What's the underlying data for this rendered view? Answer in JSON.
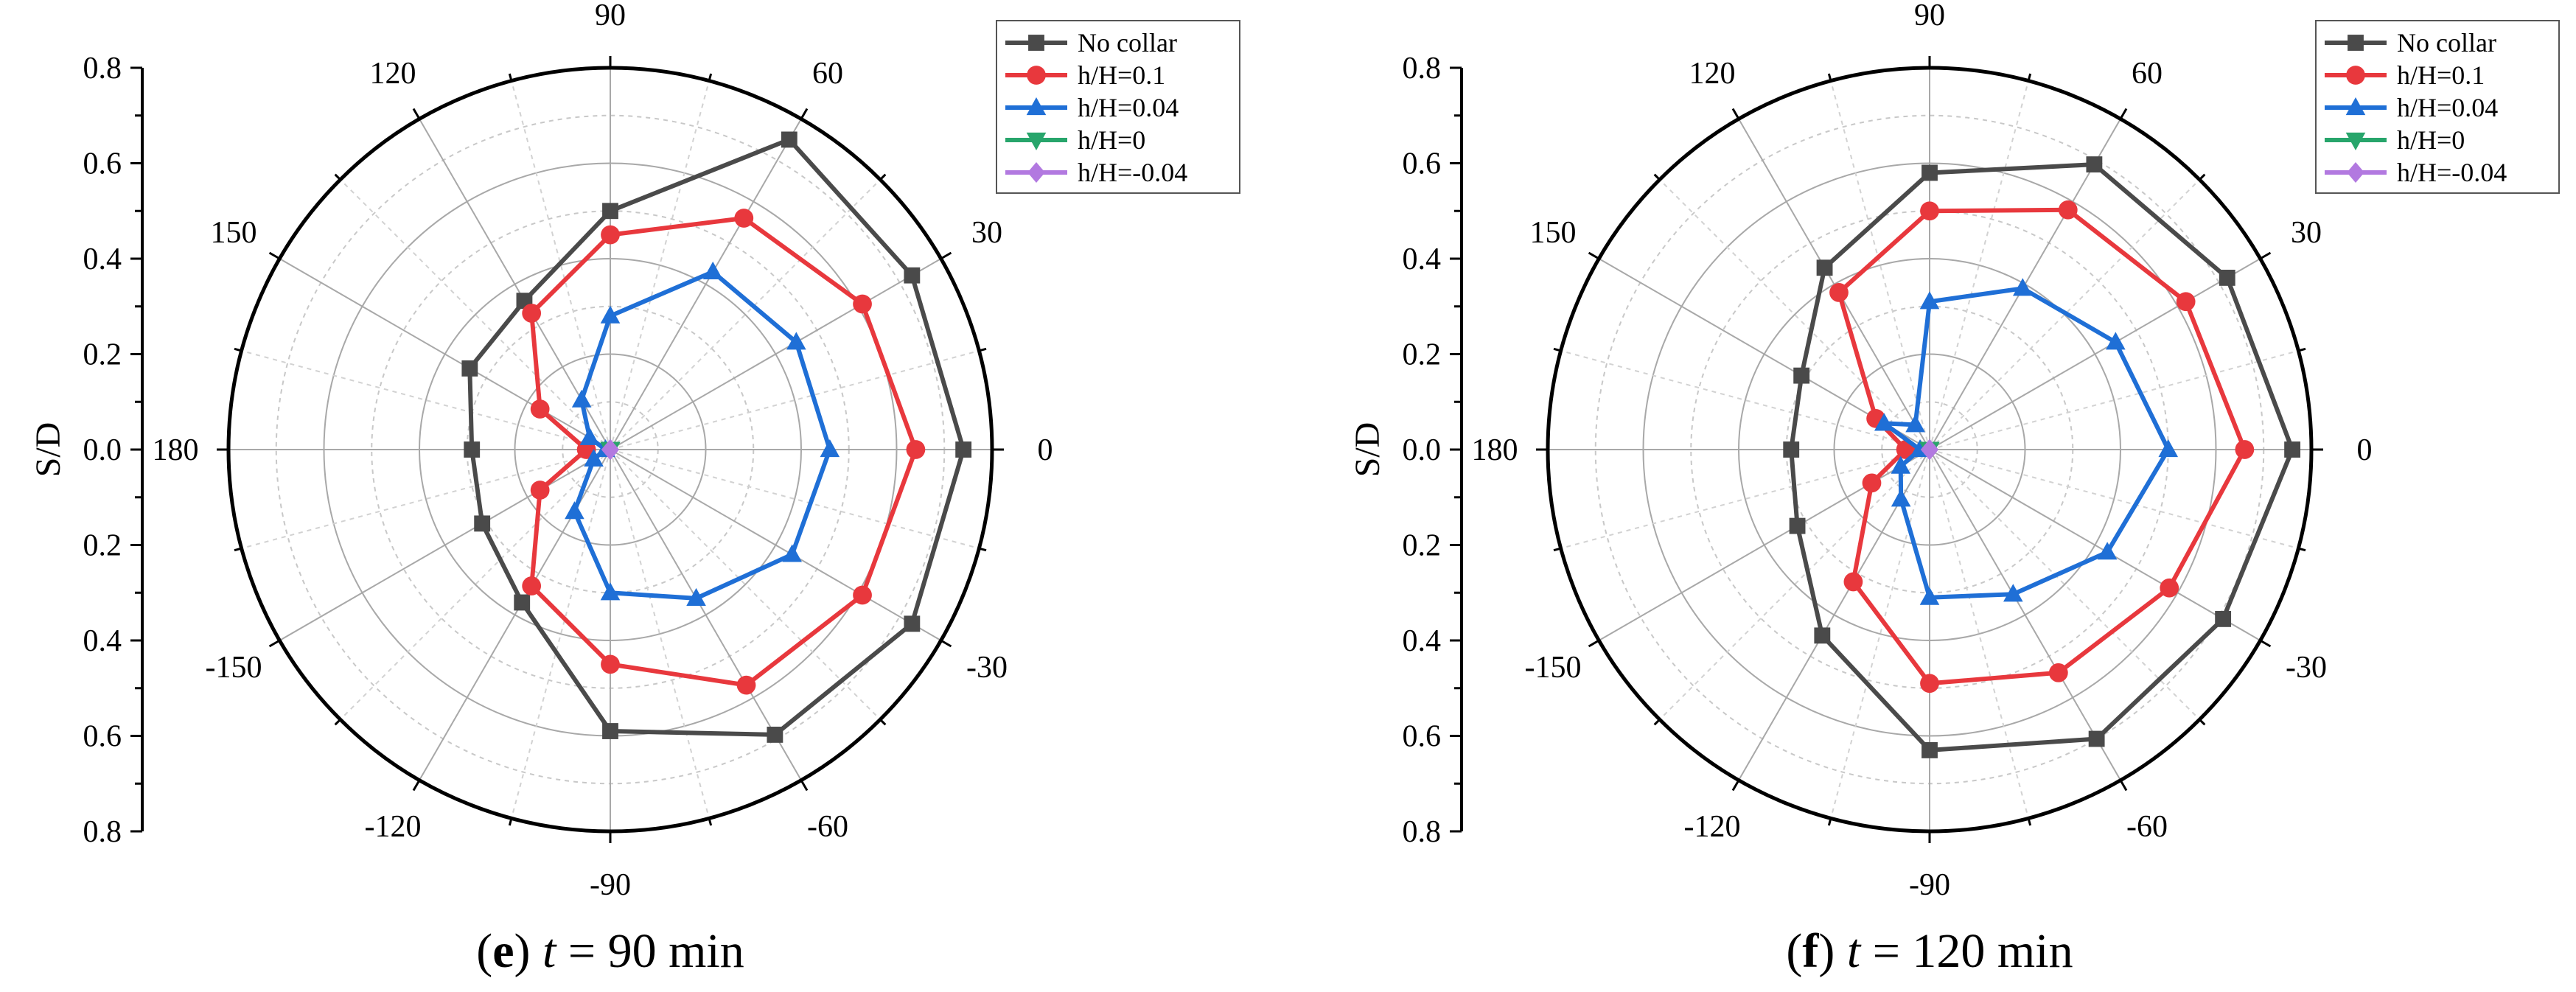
{
  "chart_data": [
    {
      "type": "radar",
      "panel_label": "e",
      "caption_var": "t",
      "caption_rest": " = 90 min",
      "ylabel": "S/D",
      "r_range": [
        0,
        0.8
      ],
      "ring_step": 0.2,
      "minor_ring_step": 0.1,
      "y_ticks": [
        "0.8",
        "0.6",
        "0.4",
        "0.2",
        "0.0",
        "0.2",
        "0.4",
        "0.6",
        "0.8"
      ],
      "angle_labels": [
        "0",
        "30",
        "60",
        "90",
        "120",
        "150",
        "180",
        "-150",
        "-120",
        "-90",
        "-60",
        "-30"
      ],
      "angles_deg": [
        0,
        30,
        60,
        90,
        120,
        150,
        180,
        -150,
        -120,
        -90,
        -60,
        -30
      ],
      "legend_position": "top-right",
      "series": [
        {
          "name": "No collar",
          "color": "#4a4a4a",
          "marker": "square",
          "values": [
            0.74,
            0.73,
            0.75,
            0.5,
            0.36,
            0.34,
            0.29,
            0.31,
            0.37,
            0.59,
            0.69,
            0.73
          ]
        },
        {
          "name": "h/H=0.1",
          "color": "#e8383d",
          "marker": "circle",
          "values": [
            0.64,
            0.61,
            0.56,
            0.45,
            0.33,
            0.17,
            0.05,
            0.17,
            0.33,
            0.45,
            0.57,
            0.61
          ]
        },
        {
          "name": "h/H=0.04",
          "color": "#1f6fd6",
          "marker": "triangle-up",
          "values": [
            0.46,
            0.45,
            0.43,
            0.28,
            0.12,
            0.05,
            0.01,
            0.04,
            0.15,
            0.3,
            0.36,
            0.44
          ]
        },
        {
          "name": "h/H=0",
          "color": "#27a56b",
          "marker": "triangle-down",
          "values": [
            0,
            0,
            0,
            0,
            0,
            0,
            0,
            0,
            0,
            0,
            0,
            0
          ]
        },
        {
          "name": "h/H=-0.04",
          "color": "#b279e0",
          "marker": "diamond",
          "values": [
            0,
            0,
            0,
            0,
            0,
            0,
            0,
            0,
            0,
            0,
            0,
            0
          ]
        }
      ]
    },
    {
      "type": "radar",
      "panel_label": "f",
      "caption_var": "t",
      "caption_rest": " = 120 min",
      "ylabel": "S/D",
      "r_range": [
        0,
        0.8
      ],
      "ring_step": 0.2,
      "minor_ring_step": 0.1,
      "y_ticks": [
        "0.8",
        "0.6",
        "0.4",
        "0.2",
        "0.0",
        "0.2",
        "0.4",
        "0.6",
        "0.8"
      ],
      "angle_labels": [
        "0",
        "30",
        "60",
        "90",
        "120",
        "150",
        "180",
        "-150",
        "-120",
        "-90",
        "-60",
        "-30"
      ],
      "angles_deg": [
        0,
        30,
        60,
        90,
        120,
        150,
        180,
        -150,
        -120,
        -90,
        -60,
        -30
      ],
      "legend_position": "top-right",
      "series": [
        {
          "name": "No collar",
          "color": "#4a4a4a",
          "marker": "square",
          "values": [
            0.76,
            0.72,
            0.69,
            0.58,
            0.44,
            0.31,
            0.29,
            0.32,
            0.45,
            0.63,
            0.7,
            0.71
          ]
        },
        {
          "name": "h/H=0.1",
          "color": "#e8383d",
          "marker": "circle",
          "values": [
            0.66,
            0.62,
            0.58,
            0.5,
            0.38,
            0.13,
            0.05,
            0.14,
            0.32,
            0.49,
            0.54,
            0.58
          ]
        },
        {
          "name": "h/H=0.04",
          "color": "#1f6fd6",
          "marker": "triangle-up",
          "values": [
            0.5,
            0.45,
            0.39,
            0.31,
            0.06,
            0.11,
            0.02,
            0.07,
            0.12,
            0.31,
            0.35,
            0.43
          ]
        },
        {
          "name": "h/H=0",
          "color": "#27a56b",
          "marker": "triangle-down",
          "values": [
            0,
            0,
            0,
            0,
            0,
            0,
            0,
            0,
            0,
            0,
            0,
            0
          ]
        },
        {
          "name": "h/H=-0.04",
          "color": "#b279e0",
          "marker": "diamond",
          "values": [
            0,
            0,
            0,
            0,
            0,
            0,
            0,
            0,
            0,
            0,
            0,
            0
          ]
        }
      ]
    }
  ]
}
